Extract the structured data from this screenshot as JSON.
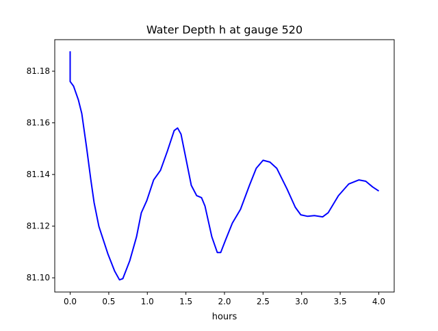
{
  "chart_data": {
    "type": "line",
    "title": "Water Depth h at gauge 520",
    "xlabel": "hours",
    "ylabel": "",
    "xlim": [
      -0.2,
      4.2
    ],
    "ylim": [
      81.0945,
      81.1922
    ],
    "xticks": [
      0.0,
      0.5,
      1.0,
      1.5,
      2.0,
      2.5,
      3.0,
      3.5,
      4.0
    ],
    "xtick_labels": [
      "0.0",
      "0.5",
      "1.0",
      "1.5",
      "2.0",
      "2.5",
      "3.0",
      "3.5",
      "4.0"
    ],
    "yticks": [
      81.1,
      81.12,
      81.14,
      81.16,
      81.18
    ],
    "ytick_labels": [
      "81.10",
      "81.12",
      "81.14",
      "81.16",
      "81.18"
    ],
    "grid": false,
    "series": [
      {
        "name": "h",
        "color": "#0000ff",
        "x": [
          0.0,
          0.0,
          0.044,
          0.106,
          0.15,
          0.213,
          0.266,
          0.31,
          0.372,
          0.488,
          0.576,
          0.639,
          0.683,
          0.772,
          0.86,
          0.922,
          0.993,
          1.082,
          1.171,
          1.259,
          1.348,
          1.392,
          1.437,
          1.499,
          1.57,
          1.64,
          1.703,
          1.747,
          1.836,
          1.907,
          1.951,
          2.013,
          2.102,
          2.208,
          2.324,
          2.412,
          2.5,
          2.589,
          2.678,
          2.811,
          2.918,
          2.989,
          3.078,
          3.166,
          3.273,
          3.344,
          3.477,
          3.61,
          3.743,
          3.831,
          3.92,
          4.0
        ],
        "y": [
          81.1877,
          81.176,
          81.1742,
          81.1689,
          81.1636,
          81.1503,
          81.1384,
          81.1291,
          81.1199,
          81.1093,
          81.1026,
          81.0992,
          81.0997,
          81.1066,
          81.1159,
          81.1252,
          81.1299,
          81.1379,
          81.1416,
          81.149,
          81.157,
          81.158,
          81.1556,
          81.1464,
          81.1358,
          81.1318,
          81.131,
          81.1278,
          81.1159,
          81.1098,
          81.1098,
          81.1146,
          81.1212,
          81.1265,
          81.1358,
          81.1424,
          81.1455,
          81.1448,
          81.1424,
          81.1344,
          81.1273,
          81.1244,
          81.1238,
          81.1241,
          81.1236,
          81.1252,
          81.1318,
          81.1363,
          81.1379,
          81.1374,
          81.1352,
          81.1336
        ]
      }
    ]
  }
}
